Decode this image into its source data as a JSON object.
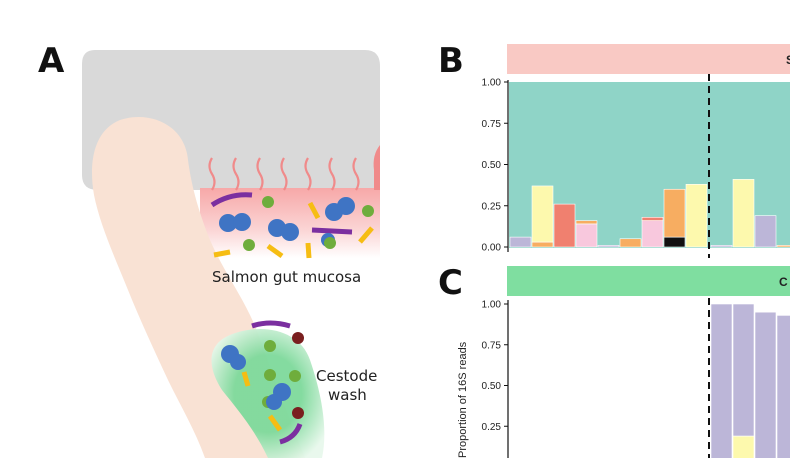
{
  "panels": {
    "a": {
      "letter": "A",
      "mucosa_label": "Salmon gut mucosa",
      "wash_label_line1": "Cestode",
      "wash_label_line2": "wash"
    },
    "b": {
      "letter": "B",
      "strip_text": "S"
    },
    "c": {
      "letter": "C",
      "strip_text": "C"
    }
  },
  "colors": {
    "strip_b": "#f9c9c4",
    "strip_c": "#7fdea0",
    "teal": "#8fd4c7",
    "lavender": "#bcb6d8",
    "yellow": "#fdf9ad",
    "orange": "#f7ad61",
    "salmon": "#f0806f",
    "pink": "#f8c8dd",
    "black": "#111111",
    "cestode": "#f9e2d4",
    "tissue": "#d9d9d9",
    "blue_dot": "#3f74c4",
    "green_dot": "#6fad3c",
    "purple_bar": "#7b2fa0",
    "gold_bar": "#f6bd13",
    "maroon_dot": "#7a1f1f"
  },
  "chart_data": [
    {
      "type": "bar",
      "panel": "B",
      "title": "",
      "ylabel": "",
      "ylim": [
        0,
        1
      ],
      "yticks": [
        "0.00",
        "0.25",
        "0.50",
        "0.75",
        "1.00"
      ],
      "stacked": true,
      "bars": [
        {
          "segments": [
            {
              "color": "lavender",
              "value": 0.06
            }
          ]
        },
        {
          "segments": [
            {
              "color": "orange",
              "value": 0.03
            },
            {
              "color": "yellow",
              "value": 0.34
            }
          ]
        },
        {
          "segments": [
            {
              "color": "salmon",
              "value": 0.26
            }
          ]
        },
        {
          "segments": [
            {
              "color": "pink",
              "value": 0.14
            },
            {
              "color": "orange",
              "value": 0.02
            }
          ]
        },
        {
          "segments": [
            {
              "color": "lavender",
              "value": 0.01
            }
          ]
        },
        {
          "segments": [
            {
              "color": "orange",
              "value": 0.05
            }
          ]
        },
        {
          "segments": [
            {
              "color": "pink",
              "value": 0.16
            },
            {
              "color": "salmon",
              "value": 0.02
            }
          ]
        },
        {
          "segments": [
            {
              "color": "black",
              "value": 0.06
            },
            {
              "color": "orange",
              "value": 0.29
            }
          ]
        },
        {
          "segments": [
            {
              "color": "yellow",
              "value": 0.38
            }
          ]
        },
        {
          "segments": [
            {
              "color": "lavender",
              "value": 0.01
            }
          ]
        },
        {
          "segments": [
            {
              "color": "yellow",
              "value": 0.41
            }
          ]
        },
        {
          "segments": [
            {
              "color": "lavender",
              "value": 0.19
            }
          ]
        },
        {
          "segments": [
            {
              "color": "orange",
              "value": 0.01
            }
          ]
        }
      ]
    },
    {
      "type": "bar",
      "panel": "C",
      "title": "",
      "ylabel": "Proportion of 16S reads",
      "ylim": [
        0,
        1
      ],
      "yticks": [
        "0.25",
        "0.50",
        "0.75",
        "1.00"
      ],
      "stacked": true,
      "bars": [
        {
          "segments": [
            {
              "color": "lavender",
              "value": 1.0
            }
          ]
        },
        {
          "segments": [
            {
              "color": "yellow",
              "value": 0.19
            },
            {
              "color": "lavender",
              "value": 0.81
            }
          ]
        },
        {
          "segments": [
            {
              "color": "lavender",
              "value": 0.95
            }
          ]
        },
        {
          "segments": [
            {
              "color": "lavender",
              "value": 0.93
            }
          ]
        }
      ]
    }
  ]
}
